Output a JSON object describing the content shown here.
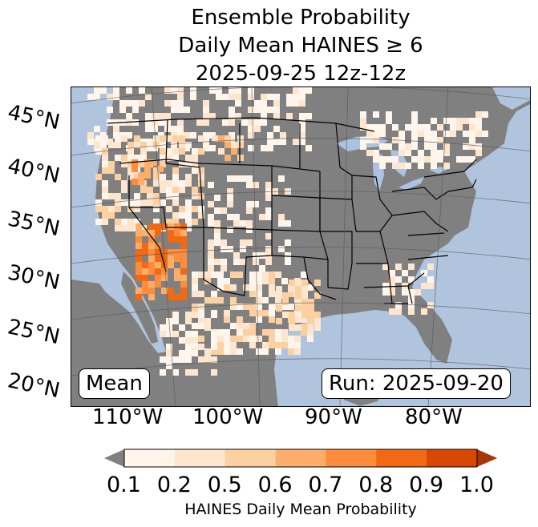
{
  "title_lines": [
    "Ensemble Probability",
    "Daily Mean HAINES ≥ 6",
    "2025-09-25 12z-12z"
  ],
  "lat_labels": [
    "45°N",
    "40°N",
    "35°N",
    "30°N",
    "25°N",
    "20°N"
  ],
  "lon_labels": [
    "110°W",
    "100°W",
    "90°W",
    "80°W"
  ],
  "badges": {
    "stat": "Mean",
    "run": "Run: 2025-09-20"
  },
  "colorbar": {
    "ticks": [
      "0.1",
      "0.2",
      "0.5",
      "0.6",
      "0.7",
      "0.8",
      "0.9",
      "1.0"
    ],
    "colors": [
      "#fff5eb",
      "#fee6ce",
      "#fdd0a2",
      "#fdae6b",
      "#fd8d3c",
      "#f16913",
      "#d94801"
    ],
    "under_color": "#808080",
    "over_color": "#a63603",
    "label": "HAINES Daily Mean Probability"
  },
  "map_colors": {
    "ocean": "#b0c4de",
    "lakes": "#aac3e0",
    "below_threshold": "#808080",
    "borders": "#000000",
    "graticule": "#555555"
  }
}
